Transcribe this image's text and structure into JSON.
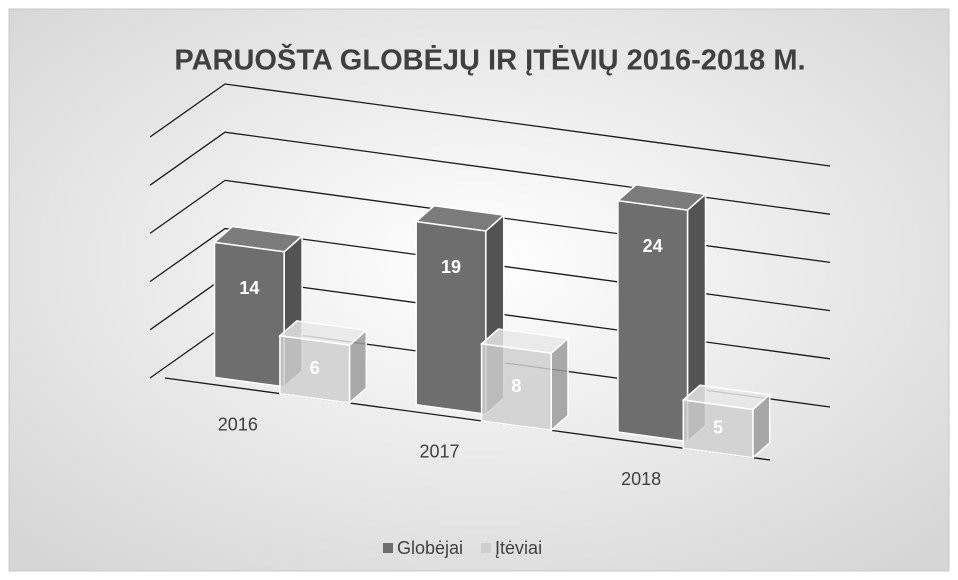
{
  "chart_data": {
    "type": "bar3d",
    "title": "PARUOŠTA GLOBĖJŲ IR ĮTĖVIŲ 2016-2018 M.",
    "categories": [
      "2016",
      "2017",
      "2018"
    ],
    "series": [
      {
        "name": "Globėjai",
        "color": "#6e6e6e",
        "values": [
          14,
          19,
          24
        ]
      },
      {
        "name": "Įtėviai",
        "color": "#cfcfcf",
        "values": [
          6,
          8,
          5
        ]
      }
    ],
    "ylim": [
      0,
      25
    ],
    "yticks": [
      0,
      5,
      10,
      15,
      20,
      25
    ],
    "grid": true,
    "legend": "bottom"
  }
}
